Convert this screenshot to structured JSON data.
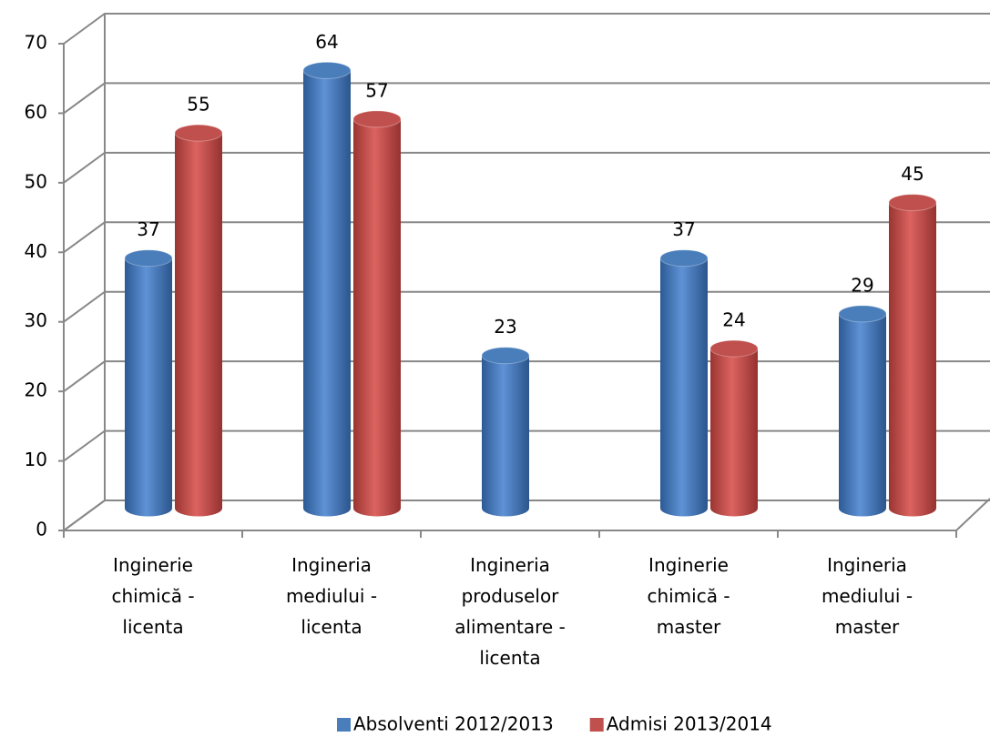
{
  "chart_data": {
    "type": "bar3d",
    "categories": [
      "Inginerie chimică - licenta",
      "Ingineria mediului - licenta",
      "Ingineria produselor alimentare - licenta",
      "Inginerie chimică - master",
      "Ingineria mediului - master"
    ],
    "series": [
      {
        "name": "Absolventi 2012/2013",
        "color": "#4a7ebb",
        "values": [
          37,
          64,
          23,
          37,
          29
        ]
      },
      {
        "name": "Admisi 2013/2014",
        "color": "#c0504d",
        "values": [
          55,
          57,
          null,
          24,
          45
        ]
      }
    ],
    "ylim": [
      0,
      70
    ],
    "yticks": [
      0,
      10,
      20,
      30,
      40,
      50,
      60,
      70
    ],
    "grid": true,
    "legend": "bottom"
  }
}
